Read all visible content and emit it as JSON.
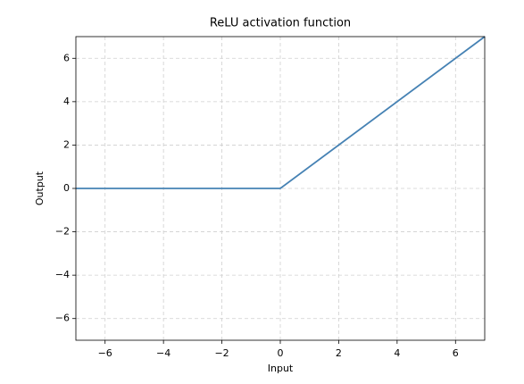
{
  "chart_data": {
    "type": "line",
    "title": "ReLU activation function",
    "x_label": "Input",
    "y_label": "Output",
    "x": [
      -7,
      0,
      7
    ],
    "values": [
      0,
      0,
      7
    ],
    "color": "#4682b4",
    "xlim": [
      -7,
      7
    ],
    "ylim": [
      -7,
      7
    ],
    "xticks": [
      {
        "value": -6,
        "label": "−6"
      },
      {
        "value": -4,
        "label": "−4"
      },
      {
        "value": -2,
        "label": "−2"
      },
      0,
      2,
      4,
      6
    ],
    "yticks": [
      {
        "value": -6,
        "label": "−6"
      },
      {
        "value": -4,
        "label": "−4"
      },
      {
        "value": -2,
        "label": "−2"
      },
      0,
      2,
      4,
      6
    ],
    "grid": true
  }
}
